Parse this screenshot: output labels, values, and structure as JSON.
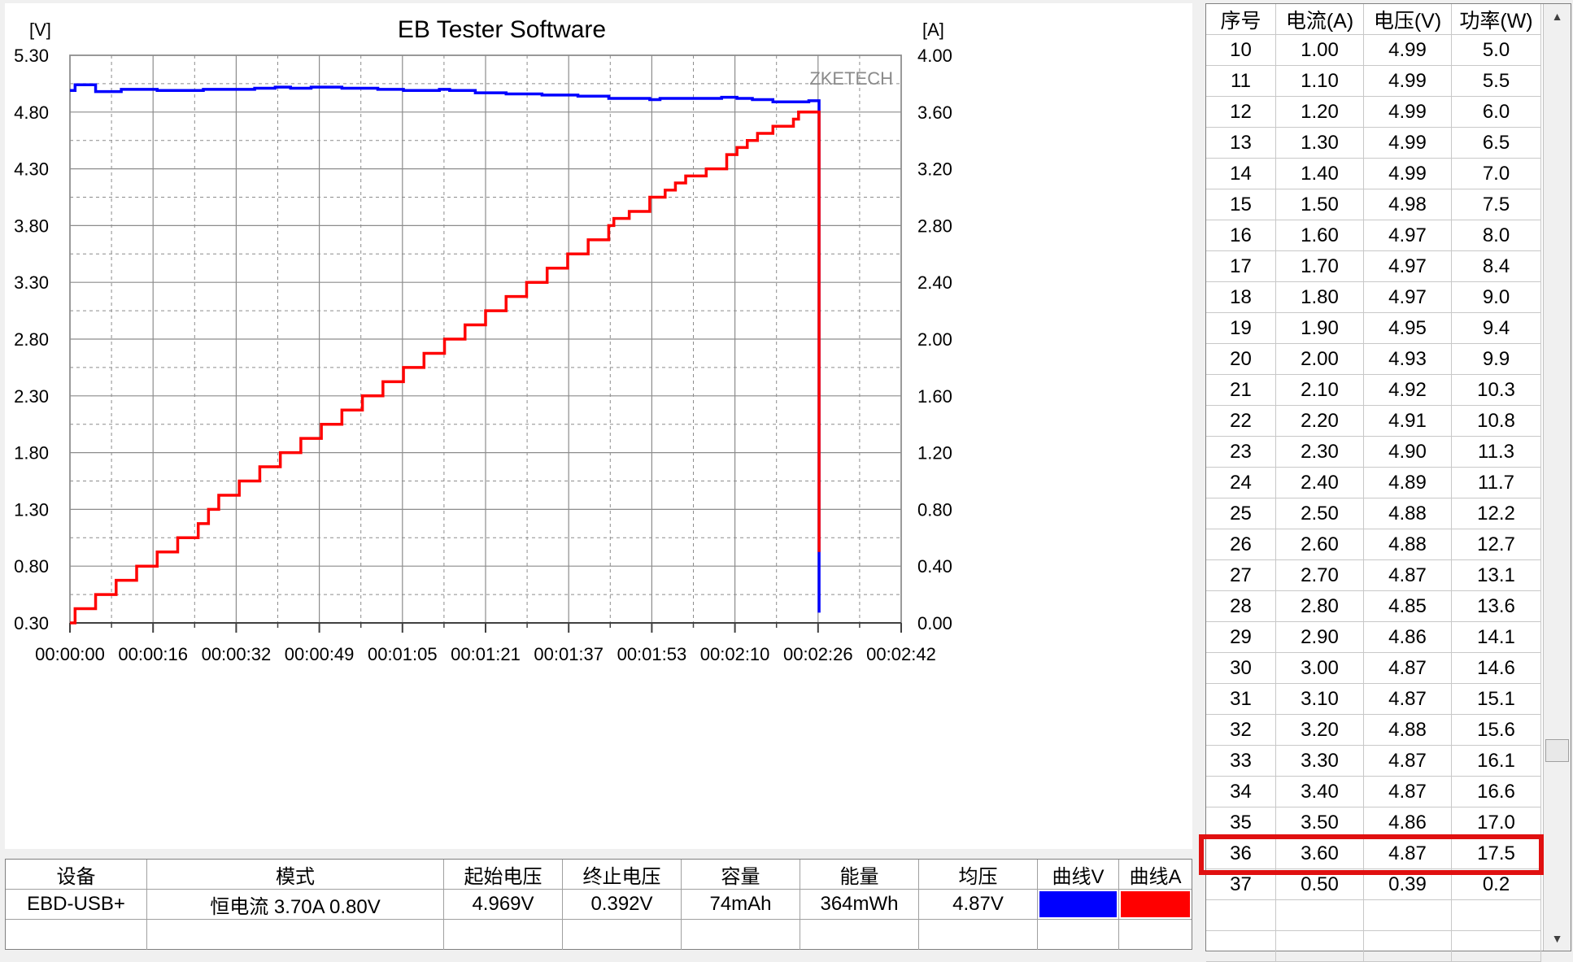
{
  "chart": {
    "title": "EB Tester Software",
    "left_unit": "[V]",
    "right_unit": "[A]",
    "watermark": "ZKETECH",
    "left_ticks": [
      "5.30",
      "4.80",
      "4.30",
      "3.80",
      "3.30",
      "2.80",
      "2.30",
      "1.80",
      "1.30",
      "0.80",
      "0.30"
    ],
    "right_ticks": [
      "4.00",
      "3.60",
      "3.20",
      "2.80",
      "2.40",
      "2.00",
      "1.60",
      "1.20",
      "0.80",
      "0.40",
      "0.00"
    ],
    "x_ticks": [
      "00:00:00",
      "00:00:16",
      "00:00:32",
      "00:00:49",
      "00:01:05",
      "00:01:21",
      "00:01:37",
      "00:01:53",
      "00:02:10",
      "00:02:26",
      "00:02:42"
    ],
    "voltage_color": "#0000ff",
    "current_color": "#ff0000"
  },
  "chart_data": {
    "type": "line",
    "title": "EB Tester Software",
    "xlabel": "",
    "ylabel_left": "[V]",
    "ylabel_right": "[A]",
    "x_range": [
      "00:00:00",
      "00:02:42"
    ],
    "y_left_range": [
      0.3,
      5.3
    ],
    "y_right_range": [
      0.0,
      4.0
    ],
    "grid": true,
    "series": [
      {
        "axis": "left",
        "color": "#0000ff",
        "x_seconds": [
          0,
          1,
          4,
          5,
          8,
          10,
          13,
          17,
          21,
          26,
          31,
          36,
          38,
          40,
          43,
          47,
          53,
          60,
          65,
          71,
          72,
          74,
          79,
          85,
          92,
          99,
          105,
          113,
          115,
          121,
          127,
          130,
          133,
          137,
          143,
          144,
          145.5,
          146
        ],
        "values": [
          4.99,
          5.04,
          5.04,
          4.98,
          4.98,
          5.0,
          5.0,
          4.99,
          4.99,
          5.0,
          5.0,
          5.01,
          5.01,
          5.02,
          5.01,
          5.02,
          5.01,
          5.0,
          4.99,
          4.99,
          5.0,
          4.99,
          4.97,
          4.96,
          4.95,
          4.94,
          4.92,
          4.91,
          4.92,
          4.92,
          4.93,
          4.92,
          4.91,
          4.89,
          4.89,
          4.9,
          4.9,
          0.39
        ]
      },
      {
        "axis": "right",
        "color": "#ff0000",
        "x_seconds": [
          0,
          1,
          5,
          9,
          13,
          17,
          21,
          25,
          26,
          27,
          29,
          33,
          37,
          41,
          45,
          49,
          53,
          57,
          61,
          65,
          69,
          73,
          77,
          81,
          85,
          89,
          93,
          97,
          101,
          105,
          106,
          109,
          113,
          116,
          118,
          120,
          122,
          124,
          128,
          130,
          131,
          132,
          133,
          134,
          135,
          137,
          141,
          142,
          143,
          144,
          145.5,
          146
        ],
        "values": [
          0.0,
          0.1,
          0.2,
          0.3,
          0.4,
          0.5,
          0.6,
          0.7,
          0.7,
          0.8,
          0.9,
          1.0,
          1.1,
          1.2,
          1.3,
          1.4,
          1.5,
          1.6,
          1.7,
          1.8,
          1.9,
          2.0,
          2.1,
          2.2,
          2.3,
          2.4,
          2.5,
          2.6,
          2.7,
          2.8,
          2.85,
          2.9,
          3.0,
          3.05,
          3.1,
          3.15,
          3.15,
          3.2,
          3.3,
          3.35,
          3.35,
          3.4,
          3.4,
          3.45,
          3.45,
          3.5,
          3.55,
          3.6,
          3.6,
          3.6,
          3.6,
          0.5
        ]
      }
    ]
  },
  "summary": {
    "headers": [
      "设备",
      "模式",
      "起始电压",
      "终止电压",
      "容量",
      "能量",
      "均压",
      "曲线V",
      "曲线A"
    ],
    "row": [
      "EBD-USB+",
      "恒电流 3.70A 0.80V",
      "4.969V",
      "0.392V",
      "74mAh",
      "364mWh",
      "4.87V",
      "",
      ""
    ]
  },
  "side_table": {
    "headers": [
      "序号",
      "电流(A)",
      "电压(V)",
      "功率(W)"
    ],
    "rows": [
      [
        "10",
        "1.00",
        "4.99",
        "5.0"
      ],
      [
        "11",
        "1.10",
        "4.99",
        "5.5"
      ],
      [
        "12",
        "1.20",
        "4.99",
        "6.0"
      ],
      [
        "13",
        "1.30",
        "4.99",
        "6.5"
      ],
      [
        "14",
        "1.40",
        "4.99",
        "7.0"
      ],
      [
        "15",
        "1.50",
        "4.98",
        "7.5"
      ],
      [
        "16",
        "1.60",
        "4.97",
        "8.0"
      ],
      [
        "17",
        "1.70",
        "4.97",
        "8.4"
      ],
      [
        "18",
        "1.80",
        "4.97",
        "9.0"
      ],
      [
        "19",
        "1.90",
        "4.95",
        "9.4"
      ],
      [
        "20",
        "2.00",
        "4.93",
        "9.9"
      ],
      [
        "21",
        "2.10",
        "4.92",
        "10.3"
      ],
      [
        "22",
        "2.20",
        "4.91",
        "10.8"
      ],
      [
        "23",
        "2.30",
        "4.90",
        "11.3"
      ],
      [
        "24",
        "2.40",
        "4.89",
        "11.7"
      ],
      [
        "25",
        "2.50",
        "4.88",
        "12.2"
      ],
      [
        "26",
        "2.60",
        "4.88",
        "12.7"
      ],
      [
        "27",
        "2.70",
        "4.87",
        "13.1"
      ],
      [
        "28",
        "2.80",
        "4.85",
        "13.6"
      ],
      [
        "29",
        "2.90",
        "4.86",
        "14.1"
      ],
      [
        "30",
        "3.00",
        "4.87",
        "14.6"
      ],
      [
        "31",
        "3.10",
        "4.87",
        "15.1"
      ],
      [
        "32",
        "3.20",
        "4.88",
        "15.6"
      ],
      [
        "33",
        "3.30",
        "4.87",
        "16.1"
      ],
      [
        "34",
        "3.40",
        "4.87",
        "16.6"
      ],
      [
        "35",
        "3.50",
        "4.86",
        "17.0"
      ],
      [
        "36",
        "3.60",
        "4.87",
        "17.5"
      ],
      [
        "37",
        "0.50",
        "0.39",
        "0.2"
      ],
      [
        "",
        "",
        "",
        ""
      ],
      [
        "",
        "",
        "",
        ""
      ]
    ]
  },
  "highlight_color": "#e01010",
  "scrollbar": {
    "up_icon": "chevron-up-icon",
    "down_icon": "chevron-down-icon"
  }
}
